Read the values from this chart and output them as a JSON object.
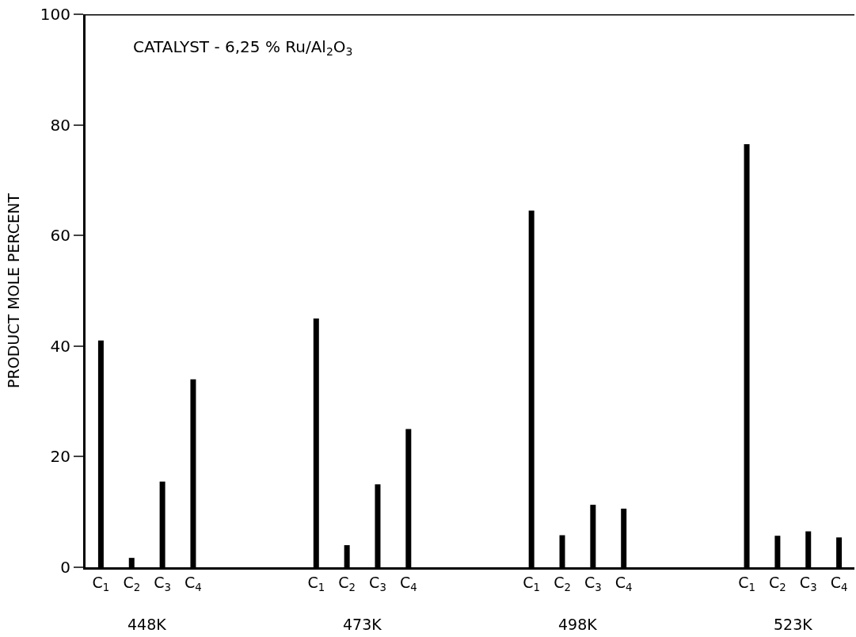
{
  "chart_data": {
    "type": "bar",
    "title": "CATALYST - 6,25 % Ru/Al$_{2}$O$_{3}$",
    "ylabel": "PRODUCT MOLE PERCENT",
    "categories": [
      "C$_{1}$",
      "C$_{2}$",
      "C$_{3}$",
      "C$_{4}$",
      null,
      null,
      null,
      "C$_{1}$",
      "C$_{2}$",
      "C$_{3}$",
      "C$_{4}$",
      null,
      null,
      null,
      "C$_{1}$",
      "C$_{2}$",
      "C$_{3}$",
      "C$_{4}$",
      null,
      null,
      null,
      "C$_{1}$",
      "C$_{2}$",
      "C$_{3}$",
      "C$_{4}$"
    ],
    "series": [
      {
        "color": "#000000",
        "values": [
          41,
          1.7,
          15.5,
          34,
          null,
          null,
          null,
          45,
          4,
          15,
          25,
          null,
          null,
          null,
          64.5,
          5.8,
          11.3,
          10.6,
          null,
          null,
          null,
          76.5,
          5.7,
          6.5,
          5.4
        ]
      }
    ],
    "annotations": [
      "448K",
      "473K",
      "498K",
      "523K"
    ],
    "ylim": [
      0,
      100
    ],
    "yticks": [
      0,
      20,
      40,
      60,
      80,
      100
    ]
  }
}
